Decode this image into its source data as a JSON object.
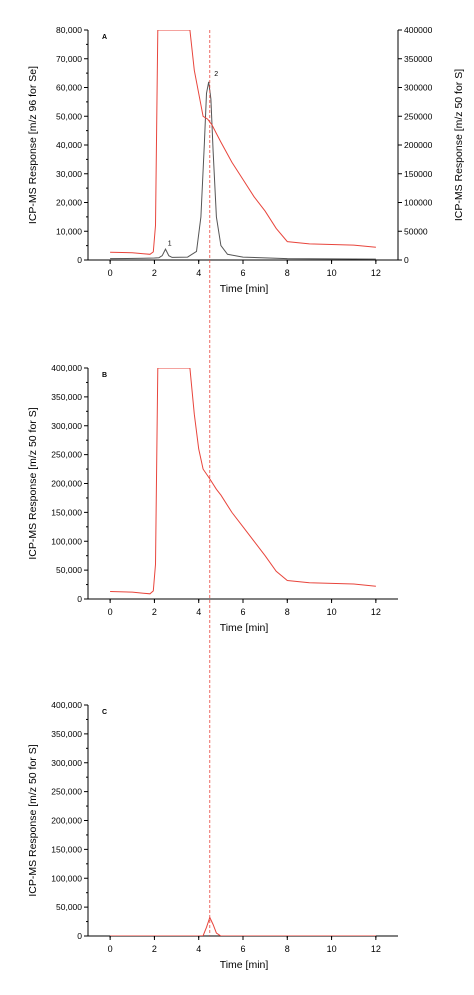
{
  "chart_data": [
    {
      "panel": "A",
      "type": "line",
      "xlabel": "Time [min]",
      "ylabel_left": "ICP-MS Response [m/z 96 for Se]",
      "ylabel_right": "ICP-MS Response [m/z 50 for S]",
      "xlim": [
        -1,
        13
      ],
      "ylim_left": [
        0,
        80000
      ],
      "ylim_right": [
        0,
        400000
      ],
      "x_ticks": [
        0,
        2,
        4,
        6,
        8,
        10,
        12
      ],
      "y_ticks_left": [
        0,
        10000,
        20000,
        30000,
        40000,
        50000,
        60000,
        70000,
        80000
      ],
      "y_tick_labels_left": [
        "0",
        "10,000",
        "20,000",
        "30,000",
        "40,000",
        "50,000",
        "60,000",
        "70,000",
        "80,000"
      ],
      "y_ticks_right": [
        0,
        50000,
        100000,
        150000,
        200000,
        250000,
        300000,
        350000,
        400000
      ],
      "y_tick_labels_right": [
        "0",
        "50000",
        "100000",
        "150000",
        "200000",
        "250000",
        "300000",
        "350000",
        "400000"
      ],
      "peak_labels": [
        {
          "text": "1",
          "x": 2.6,
          "y": 5000
        },
        {
          "text": "2",
          "x": 4.7,
          "y": 64000
        }
      ],
      "series": [
        {
          "axis": "left",
          "color": "#555555",
          "x": [
            0,
            1.5,
            2.0,
            2.2,
            2.35,
            2.5,
            2.65,
            2.8,
            3.5,
            3.9,
            4.1,
            4.25,
            4.35,
            4.45,
            4.55,
            4.65,
            4.8,
            5.0,
            5.3,
            6.0,
            8.0,
            10.0,
            12.0
          ],
          "y": [
            500,
            600,
            700,
            800,
            1500,
            3800,
            1500,
            900,
            1000,
            3000,
            15000,
            40000,
            58000,
            62000,
            56000,
            38000,
            15000,
            5000,
            2000,
            1000,
            500,
            400,
            300
          ]
        },
        {
          "axis": "right",
          "color": "#e8453c",
          "x": [
            0,
            1.0,
            1.5,
            1.8,
            1.95,
            2.05,
            2.15,
            3.6,
            3.8,
            4.0,
            4.2,
            4.4,
            4.6,
            4.8,
            5.0,
            5.5,
            6.0,
            6.5,
            7.0,
            7.5,
            8.0,
            9.0,
            10.0,
            11.0,
            12.0
          ],
          "y": [
            13500,
            12500,
            11000,
            10000,
            14000,
            60000,
            400000,
            400000,
            330000,
            290000,
            250000,
            245000,
            235000,
            220000,
            205000,
            170000,
            140000,
            110000,
            85000,
            55000,
            32000,
            28000,
            27000,
            26000,
            22000
          ]
        }
      ]
    },
    {
      "panel": "B",
      "type": "line",
      "xlabel": "Time [min]",
      "ylabel_left": "ICP-MS Response [m/z 50 for S]",
      "xlim": [
        -1,
        13
      ],
      "ylim_left": [
        0,
        400000
      ],
      "x_ticks": [
        0,
        2,
        4,
        6,
        8,
        10,
        12
      ],
      "y_ticks_left": [
        0,
        50000,
        100000,
        150000,
        200000,
        250000,
        300000,
        350000,
        400000
      ],
      "y_tick_labels_left": [
        "0",
        "50,000",
        "100,000",
        "150,000",
        "200,000",
        "250,000",
        "300,000",
        "350,000",
        "400,000"
      ],
      "series": [
        {
          "axis": "left",
          "color": "#e8453c",
          "x": [
            0,
            1.0,
            1.5,
            1.8,
            1.95,
            2.05,
            2.15,
            3.6,
            3.8,
            4.0,
            4.2,
            4.5,
            4.8,
            5.0,
            5.5,
            6.0,
            6.5,
            7.0,
            7.5,
            8.0,
            9.0,
            10.0,
            11.0,
            12.0
          ],
          "y": [
            13000,
            12000,
            10000,
            9000,
            14000,
            60000,
            400000,
            400000,
            320000,
            260000,
            225000,
            208000,
            190000,
            180000,
            150000,
            125000,
            100000,
            75000,
            48000,
            32000,
            28000,
            27000,
            26000,
            22000
          ]
        }
      ]
    },
    {
      "panel": "C",
      "type": "line",
      "xlabel": "Time [min]",
      "ylabel_left": "ICP-MS Response [m/z 50 for S]",
      "xlim": [
        -1,
        13
      ],
      "ylim_left": [
        0,
        400000
      ],
      "x_ticks": [
        0,
        2,
        4,
        6,
        8,
        10,
        12
      ],
      "y_ticks_left": [
        0,
        50000,
        100000,
        150000,
        200000,
        250000,
        300000,
        350000,
        400000
      ],
      "y_tick_labels_left": [
        "0",
        "50,000",
        "100,000",
        "150,000",
        "200,000",
        "250,000",
        "300,000",
        "350,000",
        "400,000"
      ],
      "series": [
        {
          "axis": "left",
          "color": "#e8453c",
          "x": [
            0,
            4.0,
            4.2,
            4.35,
            4.5,
            4.65,
            4.8,
            5.0,
            12.0
          ],
          "y": [
            0,
            0,
            500,
            15000,
            32000,
            20000,
            5000,
            0,
            0
          ]
        }
      ]
    }
  ],
  "reference_line": {
    "x": 4.5,
    "color": "#e8453c"
  }
}
